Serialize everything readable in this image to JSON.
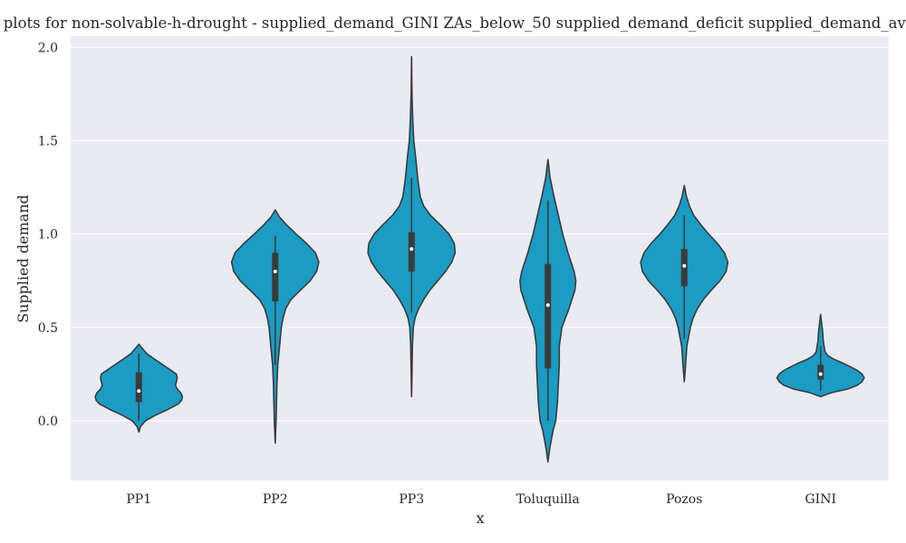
{
  "chart_data": {
    "type": "violin",
    "title": "Violin plots for non-solvable-h-drought - supplied_demand_GINI ZAs_below_50 supplied_demand_deficit  supplied_demand_average",
    "xlabel": "x",
    "ylabel": "Supplied demand",
    "ylim": [
      -0.32,
      2.06
    ],
    "yticks": [
      0.0,
      0.5,
      1.0,
      1.5,
      2.0
    ],
    "ytick_labels": [
      "0.0",
      "0.5",
      "1.0",
      "1.5",
      "2.0"
    ],
    "grid": true,
    "categories": [
      "PP1",
      "PP2",
      "PP3",
      "Toluquilla",
      "Pozos",
      "GINI"
    ],
    "fill_color": "#1a9cc4",
    "edge_color": "#3a3a3a",
    "background": "#eaeaf2",
    "violins": [
      {
        "min": -0.06,
        "max": 0.41,
        "q1": 0.1,
        "median": 0.16,
        "q3": 0.26,
        "whisker_low": 0.0,
        "whisker_high": 0.36,
        "density": [
          [
            -0.06,
            0.0
          ],
          [
            -0.03,
            0.04
          ],
          [
            0.0,
            0.15
          ],
          [
            0.03,
            0.38
          ],
          [
            0.06,
            0.66
          ],
          [
            0.09,
            0.9
          ],
          [
            0.11,
            0.98
          ],
          [
            0.13,
            1.0
          ],
          [
            0.15,
            0.96
          ],
          [
            0.17,
            0.88
          ],
          [
            0.19,
            0.84
          ],
          [
            0.21,
            0.86
          ],
          [
            0.23,
            0.88
          ],
          [
            0.25,
            0.86
          ],
          [
            0.27,
            0.74
          ],
          [
            0.3,
            0.55
          ],
          [
            0.33,
            0.36
          ],
          [
            0.36,
            0.18
          ],
          [
            0.39,
            0.07
          ],
          [
            0.41,
            0.0
          ]
        ]
      },
      {
        "min": -0.12,
        "max": 1.13,
        "q1": 0.64,
        "median": 0.8,
        "q3": 0.9,
        "whisker_low": 0.3,
        "whisker_high": 0.99,
        "density": [
          [
            -0.12,
            0.0
          ],
          [
            0.0,
            0.02
          ],
          [
            0.2,
            0.04
          ],
          [
            0.3,
            0.06
          ],
          [
            0.4,
            0.1
          ],
          [
            0.5,
            0.14
          ],
          [
            0.55,
            0.18
          ],
          [
            0.6,
            0.24
          ],
          [
            0.65,
            0.36
          ],
          [
            0.7,
            0.58
          ],
          [
            0.75,
            0.8
          ],
          [
            0.8,
            0.95
          ],
          [
            0.85,
            1.0
          ],
          [
            0.9,
            0.92
          ],
          [
            0.95,
            0.72
          ],
          [
            1.0,
            0.48
          ],
          [
            1.05,
            0.26
          ],
          [
            1.09,
            0.1
          ],
          [
            1.13,
            0.0
          ]
        ]
      },
      {
        "min": 0.13,
        "max": 1.95,
        "q1": 0.8,
        "median": 0.92,
        "q3": 1.01,
        "whisker_low": 0.58,
        "whisker_high": 1.3,
        "density": [
          [
            0.13,
            0.0
          ],
          [
            0.4,
            0.02
          ],
          [
            0.5,
            0.04
          ],
          [
            0.55,
            0.08
          ],
          [
            0.6,
            0.16
          ],
          [
            0.65,
            0.28
          ],
          [
            0.7,
            0.42
          ],
          [
            0.75,
            0.6
          ],
          [
            0.8,
            0.78
          ],
          [
            0.85,
            0.92
          ],
          [
            0.9,
            1.0
          ],
          [
            0.95,
            0.98
          ],
          [
            1.0,
            0.86
          ],
          [
            1.05,
            0.66
          ],
          [
            1.1,
            0.44
          ],
          [
            1.15,
            0.28
          ],
          [
            1.2,
            0.2
          ],
          [
            1.28,
            0.15
          ],
          [
            1.35,
            0.12
          ],
          [
            1.42,
            0.09
          ],
          [
            1.5,
            0.05
          ],
          [
            1.6,
            0.03
          ],
          [
            1.75,
            0.01
          ],
          [
            1.95,
            0.0
          ]
        ]
      },
      {
        "min": -0.22,
        "max": 1.4,
        "q1": 0.28,
        "median": 0.62,
        "q3": 0.84,
        "whisker_low": 0.0,
        "whisker_high": 1.18,
        "density": [
          [
            -0.22,
            0.0
          ],
          [
            -0.15,
            0.04
          ],
          [
            -0.05,
            0.12
          ],
          [
            0.0,
            0.18
          ],
          [
            0.1,
            0.22
          ],
          [
            0.2,
            0.24
          ],
          [
            0.3,
            0.26
          ],
          [
            0.4,
            0.26
          ],
          [
            0.5,
            0.32
          ],
          [
            0.6,
            0.48
          ],
          [
            0.7,
            0.62
          ],
          [
            0.75,
            0.64
          ],
          [
            0.8,
            0.6
          ],
          [
            0.9,
            0.46
          ],
          [
            1.0,
            0.34
          ],
          [
            1.1,
            0.24
          ],
          [
            1.2,
            0.14
          ],
          [
            1.3,
            0.05
          ],
          [
            1.4,
            0.0
          ]
        ]
      },
      {
        "min": 0.21,
        "max": 1.26,
        "q1": 0.72,
        "median": 0.83,
        "q3": 0.92,
        "whisker_low": 0.44,
        "whisker_high": 1.1,
        "density": [
          [
            0.21,
            0.0
          ],
          [
            0.3,
            0.03
          ],
          [
            0.4,
            0.06
          ],
          [
            0.45,
            0.1
          ],
          [
            0.5,
            0.14
          ],
          [
            0.55,
            0.2
          ],
          [
            0.6,
            0.3
          ],
          [
            0.65,
            0.44
          ],
          [
            0.7,
            0.62
          ],
          [
            0.75,
            0.82
          ],
          [
            0.8,
            0.96
          ],
          [
            0.85,
            1.0
          ],
          [
            0.9,
            0.92
          ],
          [
            0.95,
            0.76
          ],
          [
            1.0,
            0.56
          ],
          [
            1.05,
            0.38
          ],
          [
            1.1,
            0.22
          ],
          [
            1.15,
            0.12
          ],
          [
            1.2,
            0.05
          ],
          [
            1.26,
            0.0
          ]
        ]
      },
      {
        "min": 0.13,
        "max": 0.57,
        "q1": 0.22,
        "median": 0.25,
        "q3": 0.3,
        "whisker_low": 0.16,
        "whisker_high": 0.4,
        "density": [
          [
            0.13,
            0.0
          ],
          [
            0.15,
            0.24
          ],
          [
            0.17,
            0.62
          ],
          [
            0.19,
            0.84
          ],
          [
            0.21,
            0.95
          ],
          [
            0.23,
            1.0
          ],
          [
            0.25,
            0.95
          ],
          [
            0.27,
            0.84
          ],
          [
            0.29,
            0.68
          ],
          [
            0.31,
            0.5
          ],
          [
            0.33,
            0.3
          ],
          [
            0.35,
            0.16
          ],
          [
            0.37,
            0.1
          ],
          [
            0.4,
            0.08
          ],
          [
            0.43,
            0.06
          ],
          [
            0.46,
            0.05
          ],
          [
            0.49,
            0.04
          ],
          [
            0.53,
            0.02
          ],
          [
            0.57,
            0.0
          ]
        ]
      }
    ]
  }
}
